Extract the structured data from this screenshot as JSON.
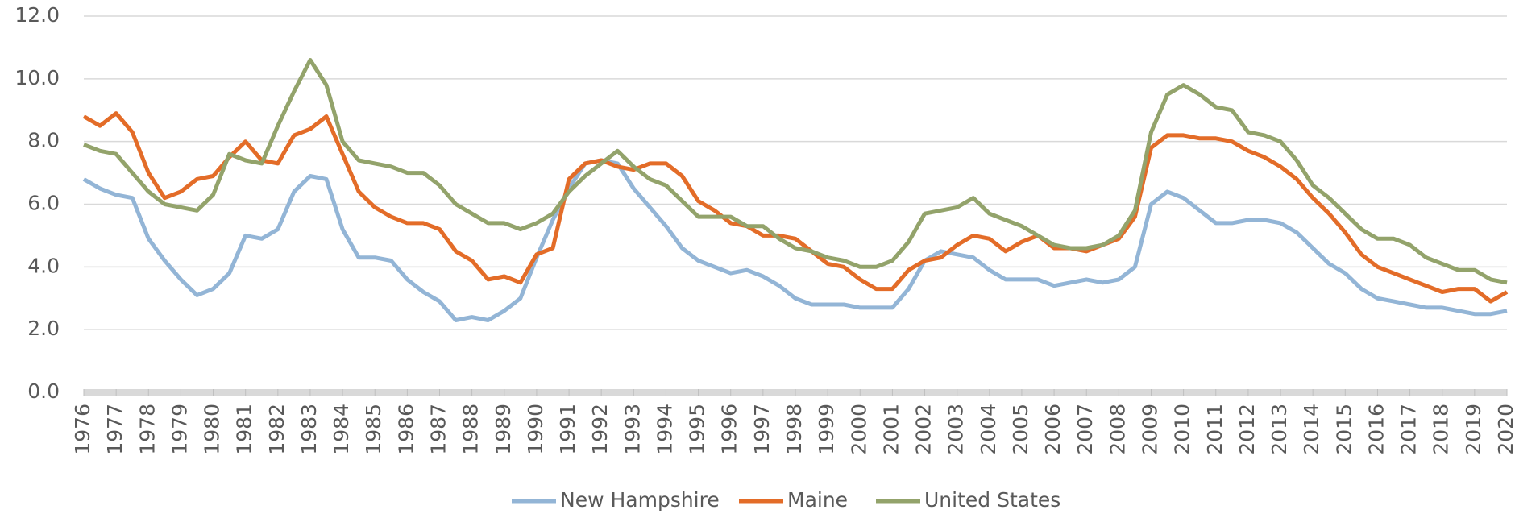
{
  "chart_data": {
    "type": "line",
    "x": [
      1976,
      1976.5,
      1977,
      1977.5,
      1978,
      1978.5,
      1979,
      1979.5,
      1980,
      1980.5,
      1981,
      1981.5,
      1982,
      1982.5,
      1983,
      1983.5,
      1984,
      1984.5,
      1985,
      1985.5,
      1986,
      1986.5,
      1987,
      1987.5,
      1988,
      1988.5,
      1989,
      1989.5,
      1990,
      1990.5,
      1991,
      1991.5,
      1992,
      1992.5,
      1993,
      1993.5,
      1994,
      1994.5,
      1995,
      1995.5,
      1996,
      1996.5,
      1997,
      1997.5,
      1998,
      1998.5,
      1999,
      1999.5,
      2000,
      2000.5,
      2001,
      2001.5,
      2002,
      2002.5,
      2003,
      2003.5,
      2004,
      2004.5,
      2005,
      2005.5,
      2006,
      2006.5,
      2007,
      2007.5,
      2008,
      2008.5,
      2009,
      2009.5,
      2010,
      2010.5,
      2011,
      2011.5,
      2012,
      2012.5,
      2013,
      2013.5,
      2014,
      2014.5,
      2015,
      2015.5,
      2016,
      2016.5,
      2017,
      2017.5,
      2018,
      2018.5,
      2019,
      2019.5,
      2020
    ],
    "series": [
      {
        "name": "New Hampshire",
        "color": "#93b5d6",
        "values": [
          6.8,
          6.5,
          6.3,
          6.2,
          4.9,
          4.2,
          3.6,
          3.1,
          3.3,
          3.8,
          5.0,
          4.9,
          5.2,
          6.4,
          6.9,
          6.8,
          5.2,
          4.3,
          4.3,
          4.2,
          3.6,
          3.2,
          2.9,
          2.3,
          2.4,
          2.3,
          2.6,
          3.0,
          4.3,
          5.5,
          6.5,
          7.3,
          7.4,
          7.3,
          6.5,
          5.9,
          5.3,
          4.6,
          4.2,
          4.0,
          3.8,
          3.9,
          3.7,
          3.4,
          3.0,
          2.8,
          2.8,
          2.8,
          2.7,
          2.7,
          2.7,
          3.3,
          4.2,
          4.5,
          4.4,
          4.3,
          3.9,
          3.6,
          3.6,
          3.6,
          3.4,
          3.5,
          3.6,
          3.5,
          3.6,
          4.0,
          6.0,
          6.4,
          6.2,
          5.8,
          5.4,
          5.4,
          5.5,
          5.5,
          5.4,
          5.1,
          4.6,
          4.1,
          3.8,
          3.3,
          3.0,
          2.9,
          2.8,
          2.7,
          2.7,
          2.6,
          2.5,
          2.5,
          2.6
        ]
      },
      {
        "name": "Maine",
        "color": "#e36c28",
        "values": [
          8.8,
          8.5,
          8.9,
          8.3,
          7.0,
          6.2,
          6.4,
          6.8,
          6.9,
          7.5,
          8.0,
          7.4,
          7.3,
          8.2,
          8.4,
          8.8,
          7.6,
          6.4,
          5.9,
          5.6,
          5.4,
          5.4,
          5.2,
          4.5,
          4.2,
          3.6,
          3.7,
          3.5,
          4.4,
          4.6,
          6.8,
          7.3,
          7.4,
          7.2,
          7.1,
          7.3,
          7.3,
          6.9,
          6.1,
          5.8,
          5.4,
          5.3,
          5.0,
          5.0,
          4.9,
          4.5,
          4.1,
          4.0,
          3.6,
          3.3,
          3.3,
          3.9,
          4.2,
          4.3,
          4.7,
          5.0,
          4.9,
          4.5,
          4.8,
          5.0,
          4.6,
          4.6,
          4.5,
          4.7,
          4.9,
          5.6,
          7.8,
          8.2,
          8.2,
          8.1,
          8.1,
          8.0,
          7.7,
          7.5,
          7.2,
          6.8,
          6.2,
          5.7,
          5.1,
          4.4,
          4.0,
          3.8,
          3.6,
          3.4,
          3.2,
          3.3,
          3.3,
          2.9,
          3.2
        ]
      },
      {
        "name": "United States",
        "color": "#93a36b",
        "values": [
          7.9,
          7.7,
          7.6,
          7.0,
          6.4,
          6.0,
          5.9,
          5.8,
          6.3,
          7.6,
          7.4,
          7.3,
          8.5,
          9.6,
          10.6,
          9.8,
          8.0,
          7.4,
          7.3,
          7.2,
          7.0,
          7.0,
          6.6,
          6.0,
          5.7,
          5.4,
          5.4,
          5.2,
          5.4,
          5.7,
          6.4,
          6.9,
          7.3,
          7.7,
          7.2,
          6.8,
          6.6,
          6.1,
          5.6,
          5.6,
          5.6,
          5.3,
          5.3,
          4.9,
          4.6,
          4.5,
          4.3,
          4.2,
          4.0,
          4.0,
          4.2,
          4.8,
          5.7,
          5.8,
          5.9,
          6.2,
          5.7,
          5.5,
          5.3,
          5.0,
          4.7,
          4.6,
          4.6,
          4.7,
          5.0,
          5.8,
          8.3,
          9.5,
          9.8,
          9.5,
          9.1,
          9.0,
          8.3,
          8.2,
          8.0,
          7.4,
          6.6,
          6.2,
          5.7,
          5.2,
          4.9,
          4.9,
          4.7,
          4.3,
          4.1,
          3.9,
          3.9,
          3.6,
          3.5
        ]
      }
    ],
    "xlim": [
      1976,
      2020
    ],
    "xticks": [
      1976,
      1977,
      1978,
      1979,
      1980,
      1981,
      1982,
      1983,
      1984,
      1985,
      1986,
      1987,
      1988,
      1989,
      1990,
      1991,
      1992,
      1993,
      1994,
      1995,
      1996,
      1997,
      1998,
      1999,
      2000,
      2001,
      2002,
      2003,
      2004,
      2005,
      2006,
      2007,
      2008,
      2009,
      2010,
      2011,
      2012,
      2013,
      2014,
      2015,
      2016,
      2017,
      2018,
      2019,
      2020
    ],
    "ylim": [
      0,
      12
    ],
    "yticks": [
      {
        "value": 0,
        "label": "0.0"
      },
      {
        "value": 2,
        "label": "2.0"
      },
      {
        "value": 4,
        "label": "4.0"
      },
      {
        "value": 6,
        "label": "6.0"
      },
      {
        "value": 8,
        "label": "8.0"
      },
      {
        "value": 10,
        "label": "10.0"
      },
      {
        "value": 12,
        "label": "12.0"
      }
    ],
    "grid": true,
    "legend": "bottom"
  }
}
